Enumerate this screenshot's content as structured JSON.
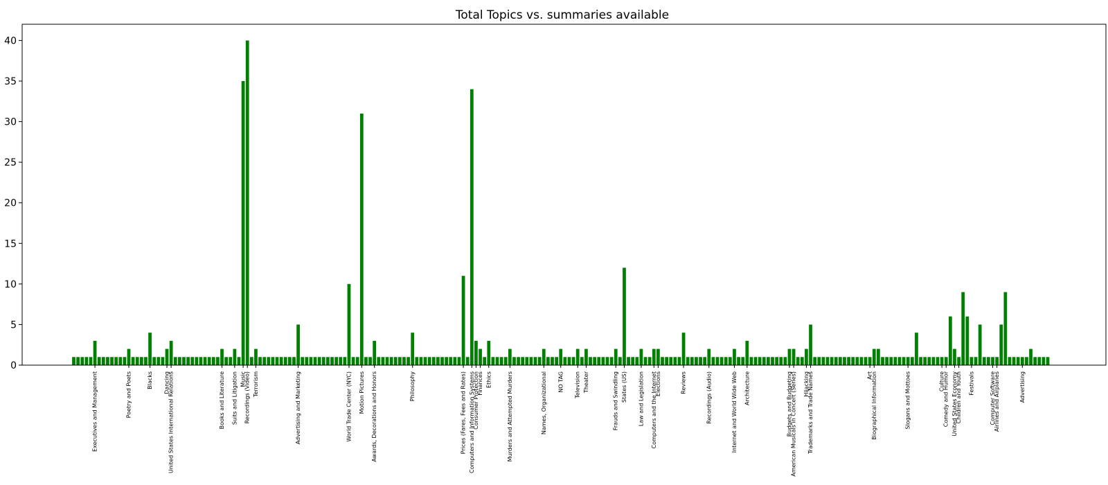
{
  "chart_data": {
    "type": "bar",
    "title": "Total Topics vs. summaries available",
    "xlabel": "",
    "ylabel": "",
    "ylim": [
      0,
      42
    ],
    "yticks": [
      0,
      5,
      10,
      15,
      20,
      25,
      30,
      35,
      40
    ],
    "bar_color": "#008000",
    "values": [
      1,
      1,
      1,
      1,
      1,
      3,
      1,
      1,
      1,
      1,
      1,
      1,
      1,
      2,
      1,
      1,
      1,
      1,
      4,
      1,
      1,
      1,
      2,
      3,
      1,
      1,
      1,
      1,
      1,
      1,
      1,
      1,
      1,
      1,
      1,
      2,
      1,
      1,
      2,
      1,
      35,
      40,
      1,
      2,
      1,
      1,
      1,
      1,
      1,
      1,
      1,
      1,
      1,
      5,
      1,
      1,
      1,
      1,
      1,
      1,
      1,
      1,
      1,
      1,
      1,
      10,
      1,
      1,
      31,
      1,
      1,
      3,
      1,
      1,
      1,
      1,
      1,
      1,
      1,
      1,
      4,
      1,
      1,
      1,
      1,
      1,
      1,
      1,
      1,
      1,
      1,
      1,
      11,
      1,
      34,
      3,
      2,
      1,
      3,
      1,
      1,
      1,
      1,
      2,
      1,
      1,
      1,
      1,
      1,
      1,
      1,
      2,
      1,
      1,
      1,
      2,
      1,
      1,
      1,
      2,
      1,
      2,
      1,
      1,
      1,
      1,
      1,
      1,
      2,
      1,
      12,
      1,
      1,
      1,
      2,
      1,
      1,
      2,
      2,
      1,
      1,
      1,
      1,
      1,
      4,
      1,
      1,
      1,
      1,
      1,
      2,
      1,
      1,
      1,
      1,
      1,
      2,
      1,
      1,
      3,
      1,
      1,
      1,
      1,
      1,
      1,
      1,
      1,
      1,
      2,
      2,
      1,
      1,
      2,
      5,
      1,
      1,
      1,
      1,
      1,
      1,
      1,
      1,
      1,
      1,
      1,
      1,
      1,
      1,
      2,
      2,
      1,
      1,
      1,
      1,
      1,
      1,
      1,
      1,
      4,
      1,
      1,
      1,
      1,
      1,
      1,
      1,
      6,
      2,
      1,
      9,
      6,
      1,
      1,
      5,
      1,
      1,
      1,
      1,
      5,
      9,
      1,
      1,
      1,
      1,
      1,
      2,
      1,
      1,
      1,
      1
    ],
    "category_labels": [
      {
        "index": 5,
        "label": "Executives and Management"
      },
      {
        "index": 13,
        "label": "Poetry and Poets"
      },
      {
        "index": 18,
        "label": "Blacks"
      },
      {
        "index": 22,
        "label": "Dancing"
      },
      {
        "index": 23,
        "label": "United States International Relations"
      },
      {
        "index": 35,
        "label": "Books and Literature"
      },
      {
        "index": 38,
        "label": "Suits and Litigation"
      },
      {
        "index": 40,
        "label": "Music"
      },
      {
        "index": 41,
        "label": "Recordings (Video)"
      },
      {
        "index": 43,
        "label": "Terrorism"
      },
      {
        "index": 53,
        "label": "Advertising and Marketing"
      },
      {
        "index": 65,
        "label": "World Trade Center (NYC)"
      },
      {
        "index": 68,
        "label": "Motion Pictures"
      },
      {
        "index": 71,
        "label": "Awards, Decorations and Honors"
      },
      {
        "index": 80,
        "label": "Philosophy"
      },
      {
        "index": 92,
        "label": "Prices (Fares, Fees and Rates)"
      },
      {
        "index": 94,
        "label": "Computers and Information Systems"
      },
      {
        "index": 95,
        "label": "Consumer Protection"
      },
      {
        "index": 96,
        "label": "Finances"
      },
      {
        "index": 98,
        "label": "Ethics"
      },
      {
        "index": 103,
        "label": "Murders and Attempted Murders"
      },
      {
        "index": 111,
        "label": "Names, Organizational"
      },
      {
        "index": 115,
        "label": "NO TAG"
      },
      {
        "index": 119,
        "label": "Television"
      },
      {
        "index": 121,
        "label": "Theater"
      },
      {
        "index": 128,
        "label": "Frauds and Swindling"
      },
      {
        "index": 130,
        "label": "States (US)"
      },
      {
        "index": 134,
        "label": "Law and Legislation"
      },
      {
        "index": 137,
        "label": "Computers and the Internet"
      },
      {
        "index": 138,
        "label": "Elections"
      },
      {
        "index": 144,
        "label": "Reviews"
      },
      {
        "index": 150,
        "label": "Recordings (Audio)"
      },
      {
        "index": 156,
        "label": "Internet and World Wide Web"
      },
      {
        "index": 159,
        "label": "Architecture"
      },
      {
        "index": 169,
        "label": "Budgets and Budgeting"
      },
      {
        "index": 170,
        "label": "American Musicals in Concert (Series)"
      },
      {
        "index": 173,
        "label": "Hijacking"
      },
      {
        "index": 174,
        "label": "Trademarks and Trade Names"
      },
      {
        "index": 188,
        "label": "Art"
      },
      {
        "index": 189,
        "label": "Biographical Information"
      },
      {
        "index": 197,
        "label": "Slogans and Mottoes"
      },
      {
        "index": 205,
        "label": "Culture"
      },
      {
        "index": 206,
        "label": "Comedy and Humor"
      },
      {
        "index": 208,
        "label": "United States Economy"
      },
      {
        "index": 209,
        "label": "Children and Youth"
      },
      {
        "index": 212,
        "label": "Festivals"
      },
      {
        "index": 217,
        "label": "Computer Software"
      },
      {
        "index": 218,
        "label": "Airlines and Airplanes"
      },
      {
        "index": 224,
        "label": "Advertising"
      }
    ]
  }
}
